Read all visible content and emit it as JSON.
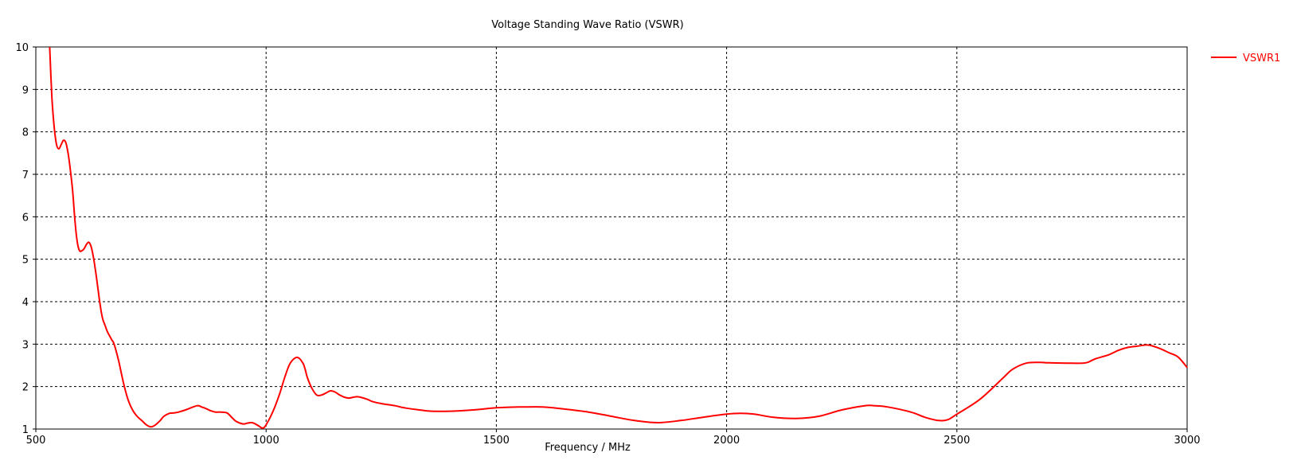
{
  "chart_data": {
    "type": "line",
    "title": "Voltage Standing Wave Ratio (VSWR)",
    "xlabel": "Frequency / MHz",
    "ylabel": "",
    "xlim": [
      500,
      3000
    ],
    "ylim": [
      1,
      10
    ],
    "xticks": [
      500,
      1000,
      1500,
      2000,
      2500,
      3000
    ],
    "yticks": [
      1,
      2,
      3,
      4,
      5,
      6,
      7,
      8,
      9,
      10
    ],
    "grid": true,
    "legend_position": "top-right",
    "colors": {
      "series": "#ff0000",
      "grid": "#000000",
      "axis": "#000000",
      "background": "#ffffff"
    },
    "series": [
      {
        "name": "VSWR1",
        "x": [
          530,
          535,
          540,
          545,
          550,
          555,
          560,
          565,
          570,
          575,
          580,
          585,
          590,
          595,
          600,
          605,
          610,
          615,
          620,
          625,
          630,
          635,
          640,
          645,
          650,
          655,
          660,
          665,
          670,
          680,
          690,
          700,
          710,
          720,
          730,
          740,
          750,
          760,
          770,
          778,
          790,
          800,
          810,
          825,
          850,
          860,
          870,
          880,
          890,
          900,
          915,
          925,
          935,
          950,
          960,
          970,
          980,
          990,
          995,
          1000,
          1010,
          1020,
          1030,
          1040,
          1050,
          1060,
          1070,
          1080,
          1085,
          1090,
          1100,
          1110,
          1120,
          1130,
          1140,
          1150,
          1160,
          1170,
          1180,
          1190,
          1200,
          1220,
          1230,
          1250,
          1280,
          1300,
          1340,
          1360,
          1400,
          1450,
          1500,
          1550,
          1560,
          1600,
          1640,
          1700,
          1750,
          1800,
          1850,
          1900,
          1950,
          2000,
          2030,
          2060,
          2100,
          2150,
          2200,
          2250,
          2300,
          2320,
          2350,
          2400,
          2430,
          2460,
          2480,
          2500,
          2550,
          2600,
          2620,
          2650,
          2680,
          2700,
          2750,
          2780,
          2800,
          2830,
          2850,
          2870,
          2890,
          2910,
          2920,
          2940,
          2960,
          2980,
          3000
        ],
        "y": [
          10.0,
          8.8,
          8.1,
          7.7,
          7.6,
          7.7,
          7.8,
          7.75,
          7.5,
          7.1,
          6.6,
          5.9,
          5.4,
          5.2,
          5.2,
          5.25,
          5.35,
          5.4,
          5.3,
          5.05,
          4.7,
          4.3,
          3.9,
          3.6,
          3.45,
          3.3,
          3.2,
          3.1,
          3.0,
          2.6,
          2.1,
          1.7,
          1.45,
          1.3,
          1.2,
          1.1,
          1.05,
          1.1,
          1.2,
          1.3,
          1.37,
          1.38,
          1.4,
          1.45,
          1.55,
          1.52,
          1.48,
          1.43,
          1.4,
          1.4,
          1.38,
          1.28,
          1.18,
          1.12,
          1.14,
          1.15,
          1.1,
          1.03,
          1.03,
          1.1,
          1.3,
          1.55,
          1.85,
          2.2,
          2.5,
          2.65,
          2.68,
          2.55,
          2.4,
          2.2,
          1.95,
          1.8,
          1.8,
          1.85,
          1.9,
          1.87,
          1.8,
          1.75,
          1.73,
          1.75,
          1.76,
          1.7,
          1.65,
          1.6,
          1.55,
          1.5,
          1.44,
          1.42,
          1.42,
          1.45,
          1.5,
          1.52,
          1.52,
          1.52,
          1.48,
          1.4,
          1.3,
          1.2,
          1.15,
          1.2,
          1.28,
          1.35,
          1.37,
          1.35,
          1.28,
          1.25,
          1.3,
          1.45,
          1.55,
          1.55,
          1.52,
          1.4,
          1.28,
          1.2,
          1.22,
          1.35,
          1.7,
          2.2,
          2.4,
          2.55,
          2.57,
          2.56,
          2.55,
          2.56,
          2.65,
          2.75,
          2.85,
          2.92,
          2.95,
          2.98,
          2.97,
          2.9,
          2.8,
          2.7,
          2.45
        ]
      }
    ]
  }
}
